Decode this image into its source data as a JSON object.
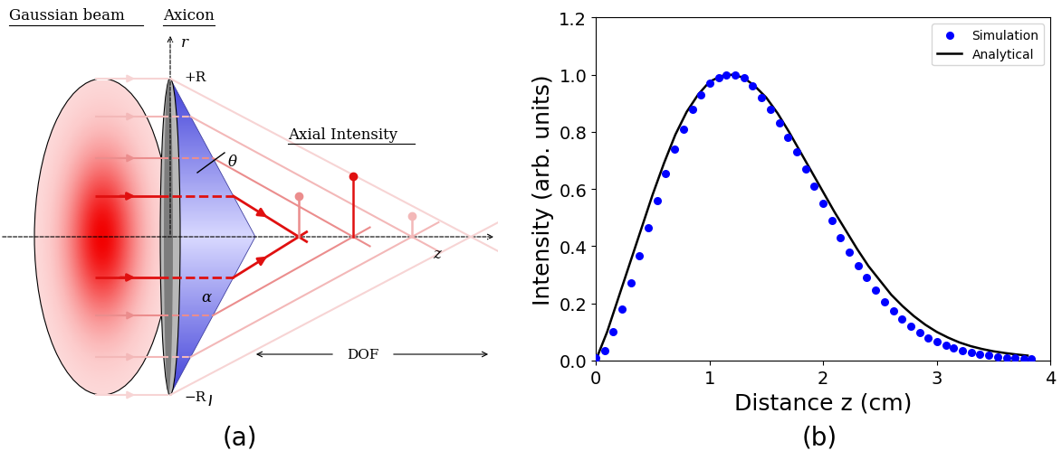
{
  "diagram": {
    "panel_label": "(a)",
    "labels": {
      "gaussian_beam": "Gaussian beam",
      "axicon": "Axicon",
      "r_axis": "r",
      "top_edge": "+R",
      "bottom_edge": "−R",
      "cone_angle": "θ",
      "base_angle": "α",
      "axial_intensity": "Axial Intensity",
      "z_axis": "z",
      "dof": "DOF"
    }
  },
  "chart_data": {
    "panel_label": "(b)",
    "type": "line",
    "x_label": "Distance z (cm)",
    "y_label": "Intensity (arb. units)",
    "xlim": [
      0,
      4
    ],
    "ylim": [
      0,
      1.2
    ],
    "xticks": [
      0,
      1,
      2,
      3,
      4
    ],
    "yticks": [
      0.0,
      0.2,
      0.4,
      0.6,
      0.8,
      1.0,
      1.2
    ],
    "legend": "upper right",
    "grid": false,
    "series": [
      {
        "name": "Simulation",
        "type": "scatter",
        "color": "#0000ff",
        "marker": "o",
        "x": [
          0.0,
          0.077,
          0.154,
          0.23,
          0.31,
          0.385,
          0.46,
          0.54,
          0.615,
          0.69,
          0.77,
          0.85,
          0.92,
          1.0,
          1.08,
          1.15,
          1.23,
          1.31,
          1.38,
          1.46,
          1.54,
          1.62,
          1.69,
          1.77,
          1.85,
          1.92,
          2.0,
          2.08,
          2.15,
          2.23,
          2.31,
          2.38,
          2.46,
          2.54,
          2.62,
          2.69,
          2.77,
          2.85,
          2.92,
          3.0,
          3.08,
          3.15,
          3.23,
          3.31,
          3.38,
          3.46,
          3.54,
          3.62,
          3.69,
          3.77,
          3.83
        ],
        "values": [
          0.01,
          0.035,
          0.1,
          0.18,
          0.27,
          0.365,
          0.465,
          0.56,
          0.655,
          0.74,
          0.81,
          0.88,
          0.93,
          0.97,
          0.99,
          1.0,
          1.0,
          0.99,
          0.96,
          0.92,
          0.88,
          0.83,
          0.78,
          0.73,
          0.67,
          0.61,
          0.55,
          0.49,
          0.43,
          0.38,
          0.33,
          0.29,
          0.245,
          0.205,
          0.175,
          0.145,
          0.12,
          0.098,
          0.08,
          0.066,
          0.053,
          0.043,
          0.035,
          0.028,
          0.022,
          0.017,
          0.013,
          0.01,
          0.008,
          0.006,
          0.005
        ]
      },
      {
        "name": "Analytical",
        "type": "line",
        "color": "#000000",
        "line_style": "solid",
        "x": [
          0.0,
          0.1,
          0.2,
          0.3,
          0.4,
          0.5,
          0.6,
          0.7,
          0.8,
          0.9,
          1.0,
          1.1,
          1.2,
          1.3,
          1.4,
          1.5,
          1.6,
          1.7,
          1.8,
          1.9,
          2.0,
          2.1,
          2.2,
          2.3,
          2.4,
          2.5,
          2.6,
          2.7,
          2.8,
          2.9,
          3.0,
          3.1,
          3.2,
          3.3,
          3.4,
          3.5,
          3.6,
          3.7,
          3.8
        ],
        "values": [
          0.0,
          0.1,
          0.22,
          0.34,
          0.46,
          0.58,
          0.69,
          0.79,
          0.87,
          0.93,
          0.975,
          0.995,
          1.0,
          0.99,
          0.96,
          0.92,
          0.865,
          0.8,
          0.73,
          0.66,
          0.59,
          0.52,
          0.455,
          0.39,
          0.33,
          0.28,
          0.23,
          0.19,
          0.155,
          0.125,
          0.1,
          0.08,
          0.063,
          0.05,
          0.04,
          0.032,
          0.026,
          0.021,
          0.017
        ]
      }
    ]
  }
}
